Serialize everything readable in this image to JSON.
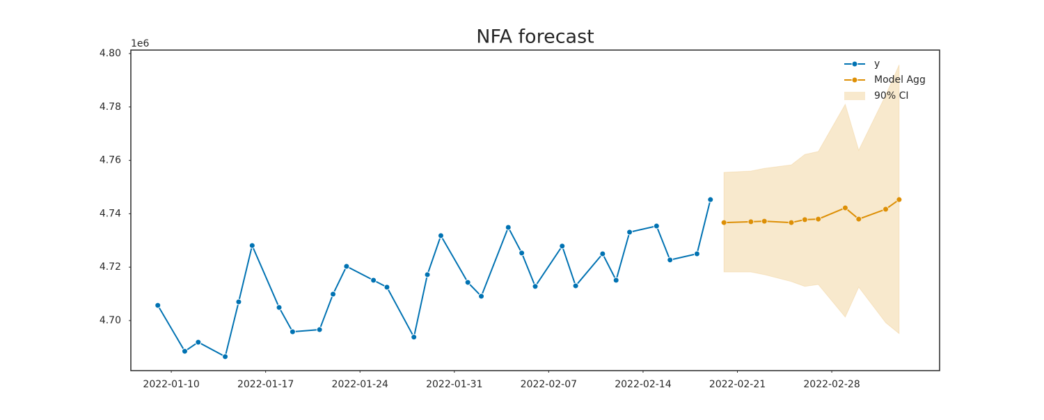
{
  "chart_data": {
    "type": "line",
    "title": "NFA forecast",
    "y_offset_label": "1e6",
    "xlim": [
      "2022-01-07",
      "2022-03-08"
    ],
    "xticks": [
      "2022-01-10",
      "2022-01-17",
      "2022-01-24",
      "2022-01-31",
      "2022-02-07",
      "2022-02-14",
      "2022-02-21",
      "2022-02-28"
    ],
    "ylim": [
      4681250,
      4801300
    ],
    "yticks": [
      {
        "value": 4700000,
        "label": "4.70"
      },
      {
        "value": 4720000,
        "label": "4.72"
      },
      {
        "value": 4740000,
        "label": "4.74"
      },
      {
        "value": 4760000,
        "label": "4.76"
      },
      {
        "value": 4780000,
        "label": "4.78"
      },
      {
        "value": 4800000,
        "label": "4.80"
      }
    ],
    "grid": false,
    "legend": "upper right",
    "series": [
      {
        "name": "y",
        "color": "#0072b2",
        "x": [
          "2022-01-09",
          "2022-01-11",
          "2022-01-12",
          "2022-01-14",
          "2022-01-15",
          "2022-01-16",
          "2022-01-18",
          "2022-01-19",
          "2022-01-21",
          "2022-01-22",
          "2022-01-23",
          "2022-01-25",
          "2022-01-26",
          "2022-01-28",
          "2022-01-29",
          "2022-01-30",
          "2022-02-01",
          "2022-02-02",
          "2022-02-04",
          "2022-02-05",
          "2022-02-06",
          "2022-02-08",
          "2022-02-09",
          "2022-02-11",
          "2022-02-12",
          "2022-02-13",
          "2022-02-15",
          "2022-02-16",
          "2022-02-18",
          "2022-02-19"
        ],
        "values": [
          4705700,
          4688500,
          4691900,
          4686500,
          4707000,
          4728100,
          4704900,
          4695800,
          4696600,
          4709900,
          4720300,
          4715100,
          4712500,
          4693800,
          4717200,
          4731800,
          4714300,
          4709100,
          4734900,
          4725300,
          4712800,
          4727900,
          4713000,
          4725000,
          4715100,
          4733100,
          4735400,
          4722700,
          4725000,
          4745300
        ]
      },
      {
        "name": "Model Agg",
        "color": "#de8f05",
        "x": [
          "2022-02-20",
          "2022-02-22",
          "2022-02-23",
          "2022-02-25",
          "2022-02-26",
          "2022-02-27",
          "2022-03-01",
          "2022-03-02",
          "2022-03-04",
          "2022-03-05"
        ],
        "values": [
          4736700,
          4737000,
          4737200,
          4736700,
          4737800,
          4738000,
          4742200,
          4738000,
          4741700,
          4745300
        ]
      },
      {
        "name": "90% CI",
        "color": "#de8f05",
        "type": "band",
        "x": [
          "2022-02-20",
          "2022-02-22",
          "2022-02-23",
          "2022-02-25",
          "2022-02-26",
          "2022-02-27",
          "2022-03-01",
          "2022-03-02",
          "2022-03-04",
          "2022-03-05"
        ],
        "lower": [
          4718200,
          4718200,
          4717200,
          4714600,
          4712800,
          4713500,
          4701300,
          4712500,
          4699200,
          4695100
        ],
        "upper": [
          4755500,
          4756000,
          4757000,
          4758300,
          4762200,
          4763300,
          4781000,
          4763800,
          4784400,
          4795800
        ]
      }
    ]
  }
}
